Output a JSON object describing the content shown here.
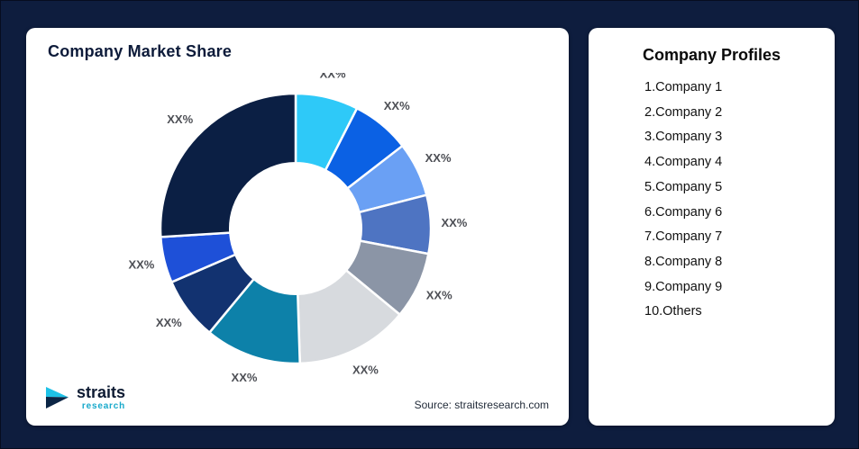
{
  "page": {
    "background_color": "#0e1d3e"
  },
  "chart_card": {
    "title": "Company Market Share",
    "source_note": "Source: straitsresearch.com",
    "logo": {
      "name": "straits",
      "sub": "research",
      "accent_color": "#17a9cb",
      "dark_color": "#0e1b33"
    }
  },
  "chart_data": {
    "type": "pie",
    "donut": true,
    "title": "Company Market Share",
    "inner_radius_ratio": 0.485,
    "start_angle_deg": 0,
    "direction": "clockwise",
    "legend": "none",
    "note": "All slice labels display placeholder text XX%; value_pct values are angular shares estimated from the rendered arcs.",
    "segments": [
      {
        "label": "XX%",
        "value_pct": 7.5,
        "color": "#2ec9f8"
      },
      {
        "label": "XX%",
        "value_pct": 7.0,
        "color": "#0b61e4"
      },
      {
        "label": "XX%",
        "value_pct": 6.5,
        "color": "#6aa0f4"
      },
      {
        "label": "XX%",
        "value_pct": 7.0,
        "color": "#4e74c2"
      },
      {
        "label": "XX%",
        "value_pct": 8.0,
        "color": "#8b95a6"
      },
      {
        "label": "XX%",
        "value_pct": 13.5,
        "color": "#d7dade"
      },
      {
        "label": "XX%",
        "value_pct": 11.5,
        "color": "#0d81a9"
      },
      {
        "label": "XX%",
        "value_pct": 7.5,
        "color": "#123270"
      },
      {
        "label": "XX%",
        "value_pct": 5.5,
        "color": "#1e50d8"
      },
      {
        "label": "XX%",
        "value_pct": 26.0,
        "color": "#0b1f44"
      }
    ],
    "source": "Source: straitsresearch.com"
  },
  "profiles_card": {
    "title": "Company Profiles",
    "items": [
      "1.Company 1",
      "2.Company 2",
      "3.Company 3",
      "4.Company 4",
      "5.Company 5",
      "6.Company 6",
      "7.Company 7",
      "8.Company 8",
      "9.Company 9",
      "10.Others"
    ]
  }
}
